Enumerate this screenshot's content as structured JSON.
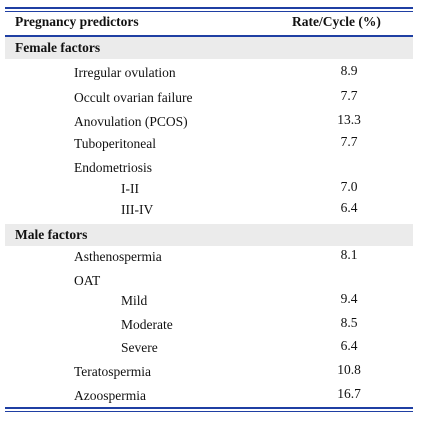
{
  "table": {
    "header": [
      "Pregnancy predictors",
      "Rate/Cycle (%)"
    ],
    "sections": [
      {
        "title": "Female factors",
        "rows": [
          {
            "label": "Irregular ovulation",
            "value": "8.9"
          },
          {
            "label": "Occult ovarian failure",
            "value": "7.7"
          },
          {
            "label": "Anovulation (PCOS)",
            "value": "13.3"
          },
          {
            "label": "Tuboperitoneal",
            "value": "7.7"
          },
          {
            "label": "Endometriosis",
            "children": [
              {
                "label": "I-II",
                "value": "7.0"
              },
              {
                "label": "III-IV",
                "value": "6.4"
              }
            ]
          }
        ]
      },
      {
        "title": "Male factors",
        "rows": [
          {
            "label": "Asthenospermia",
            "value": "8.1"
          },
          {
            "label": "OAT",
            "children": [
              {
                "label": "Mild",
                "value": "9.4"
              },
              {
                "label": "Moderate",
                "value": "8.5"
              },
              {
                "label": "Severe",
                "value": "6.4"
              }
            ]
          },
          {
            "label": "Teratospermia",
            "value": "10.8"
          },
          {
            "label": "Azoospermia",
            "value": "16.7"
          }
        ]
      }
    ]
  }
}
